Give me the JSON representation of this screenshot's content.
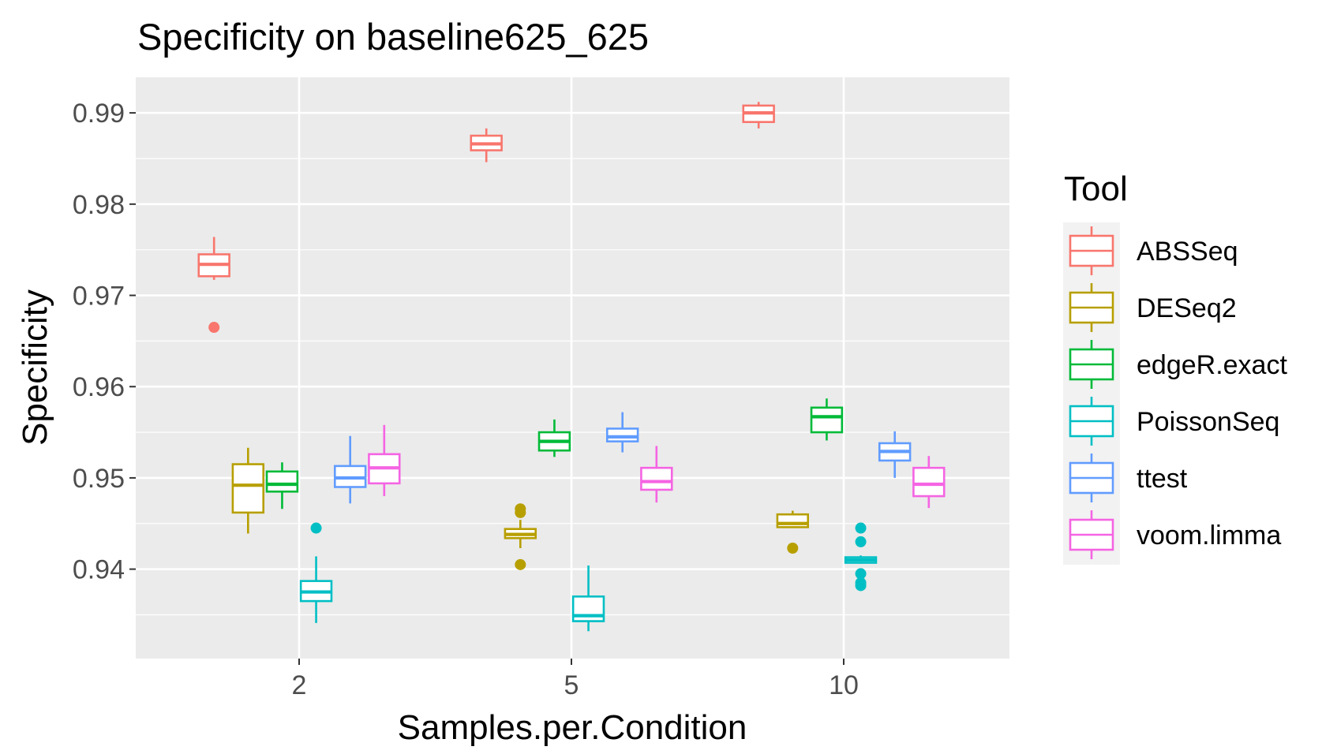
{
  "chart_data": {
    "type": "boxplot",
    "title": "Specificity on baseline625_625",
    "xlabel": "Samples.per.Condition",
    "ylabel": "Specificity",
    "categories": [
      "2",
      "5",
      "10"
    ],
    "ylim": [
      0.9302,
      0.9939
    ],
    "yticks": [
      0.94,
      0.95,
      0.96,
      0.97,
      0.98,
      0.99
    ],
    "ytick_labels": [
      "0.94",
      "0.95",
      "0.96",
      "0.97",
      "0.98",
      "0.99"
    ],
    "grid": true,
    "legend": {
      "title": "Tool",
      "position": "right"
    },
    "series": [
      {
        "name": "ABSSeq",
        "color": "#F8766D",
        "boxes": [
          {
            "whisker_low": 0.9717,
            "q1": 0.9721,
            "median": 0.9734,
            "q3": 0.9745,
            "whisker_high": 0.9764,
            "outliers": [
              0.9665
            ]
          },
          {
            "whisker_low": 0.9846,
            "q1": 0.9859,
            "median": 0.9866,
            "q3": 0.9875,
            "whisker_high": 0.9883,
            "outliers": []
          },
          {
            "whisker_low": 0.9883,
            "q1": 0.989,
            "median": 0.99,
            "q3": 0.9908,
            "whisker_high": 0.9912,
            "outliers": []
          }
        ]
      },
      {
        "name": "DESeq2",
        "color": "#B79F00",
        "boxes": [
          {
            "whisker_low": 0.9439,
            "q1": 0.9462,
            "median": 0.9492,
            "q3": 0.9515,
            "whisker_high": 0.9533,
            "outliers": []
          },
          {
            "whisker_low": 0.9423,
            "q1": 0.9434,
            "median": 0.9438,
            "q3": 0.9444,
            "whisker_high": 0.9454,
            "outliers": [
              0.9405,
              0.9462,
              0.9466
            ]
          },
          {
            "whisker_low": 0.9445,
            "q1": 0.9446,
            "median": 0.945,
            "q3": 0.946,
            "whisker_high": 0.9464,
            "outliers": [
              0.9423
            ]
          }
        ]
      },
      {
        "name": "edgeR.exact",
        "color": "#00BA38",
        "boxes": [
          {
            "whisker_low": 0.9466,
            "q1": 0.9485,
            "median": 0.9493,
            "q3": 0.9507,
            "whisker_high": 0.9517,
            "outliers": []
          },
          {
            "whisker_low": 0.9523,
            "q1": 0.953,
            "median": 0.954,
            "q3": 0.955,
            "whisker_high": 0.9564,
            "outliers": []
          },
          {
            "whisker_low": 0.9541,
            "q1": 0.955,
            "median": 0.9567,
            "q3": 0.9577,
            "whisker_high": 0.9587,
            "outliers": []
          }
        ]
      },
      {
        "name": "PoissonSeq",
        "color": "#00BFC4",
        "boxes": [
          {
            "whisker_low": 0.9341,
            "q1": 0.9365,
            "median": 0.9375,
            "q3": 0.9387,
            "whisker_high": 0.9414,
            "outliers": [
              0.9445
            ]
          },
          {
            "whisker_low": 0.9332,
            "q1": 0.9343,
            "median": 0.9349,
            "q3": 0.937,
            "whisker_high": 0.9404,
            "outliers": []
          },
          {
            "whisker_low": 0.9406,
            "q1": 0.9407,
            "median": 0.941,
            "q3": 0.9413,
            "whisker_high": 0.9415,
            "outliers": [
              0.9382,
              0.9385,
              0.9395,
              0.943,
              0.9445
            ]
          }
        ]
      },
      {
        "name": "ttest",
        "color": "#619CFF",
        "boxes": [
          {
            "whisker_low": 0.9472,
            "q1": 0.949,
            "median": 0.95,
            "q3": 0.9513,
            "whisker_high": 0.9546,
            "outliers": []
          },
          {
            "whisker_low": 0.9528,
            "q1": 0.954,
            "median": 0.9545,
            "q3": 0.9554,
            "whisker_high": 0.9572,
            "outliers": []
          },
          {
            "whisker_low": 0.95,
            "q1": 0.9519,
            "median": 0.9529,
            "q3": 0.9538,
            "whisker_high": 0.9551,
            "outliers": []
          }
        ]
      },
      {
        "name": "voom.limma",
        "color": "#F564E3",
        "boxes": [
          {
            "whisker_low": 0.948,
            "q1": 0.9494,
            "median": 0.9511,
            "q3": 0.9526,
            "whisker_high": 0.9558,
            "outliers": []
          },
          {
            "whisker_low": 0.9473,
            "q1": 0.9487,
            "median": 0.9496,
            "q3": 0.9511,
            "whisker_high": 0.9535,
            "outliers": []
          },
          {
            "whisker_low": 0.9467,
            "q1": 0.948,
            "median": 0.9493,
            "q3": 0.9511,
            "whisker_high": 0.9524,
            "outliers": []
          }
        ]
      }
    ]
  }
}
